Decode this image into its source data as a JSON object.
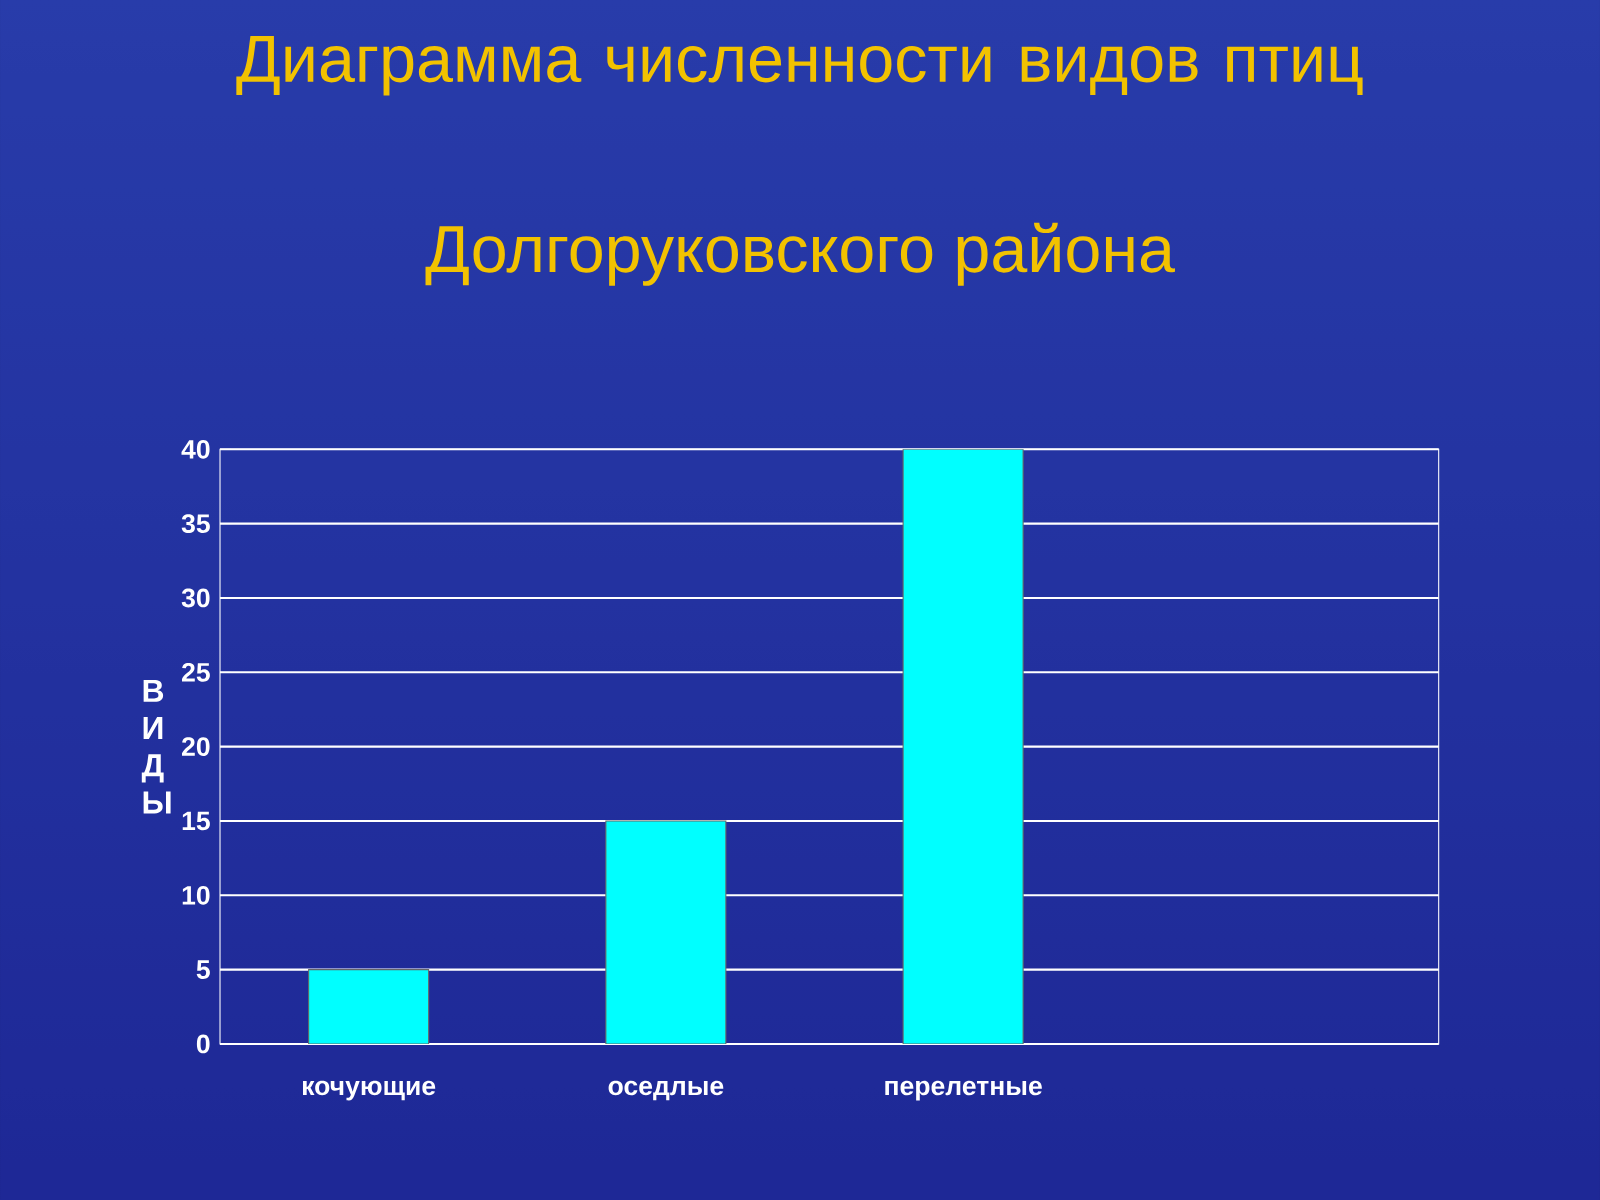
{
  "chart_data": {
    "type": "bar",
    "title": "Диаграмма численности видов птиц",
    "subtitle": "Долгоруковского района",
    "ylabel": "В И Д Ы",
    "categories": [
      "кочующие",
      "оседлые",
      "перелетные"
    ],
    "values": [
      5,
      15,
      40
    ],
    "color": "#00ffff",
    "ylim": [
      0,
      40
    ],
    "yticks": [
      0,
      5,
      10,
      15,
      20,
      25,
      30,
      35,
      40
    ],
    "grid": "y"
  }
}
